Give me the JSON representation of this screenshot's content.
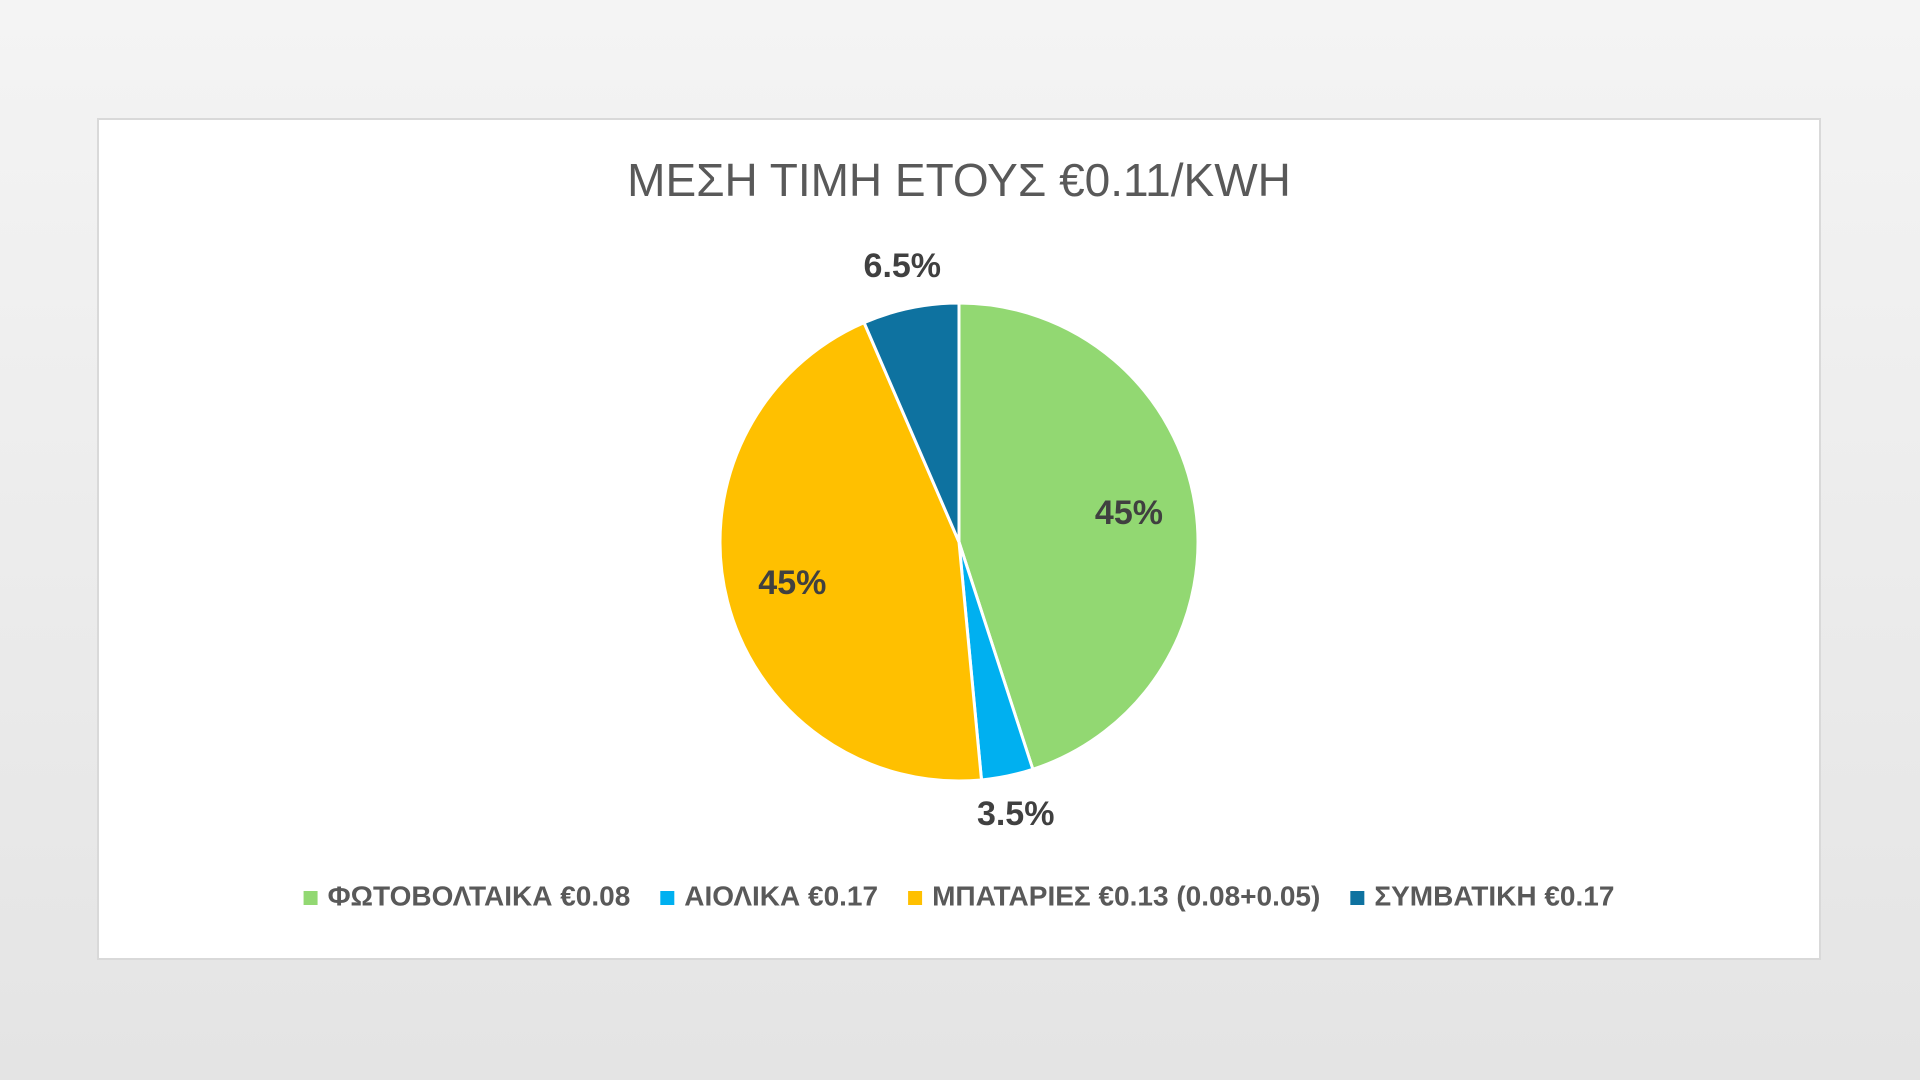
{
  "chart_data": {
    "type": "pie",
    "title": "ΜΕΣΗ ΤΙΜΗ ΕΤΟΥΣ €0.11/KWH",
    "categories": [
      "ΦΩΤΟΒΟΛΤΑΙΚΑ €0.08",
      "ΑΙΟΛΙΚΑ €0.17",
      "ΜΠΑΤΑΡΙΕΣ €0.13 (0.08+0.05)",
      "ΣΥΜΒΑΤΙΚΗ €0.17"
    ],
    "values": [
      45,
      3.5,
      45,
      6.5
    ],
    "value_labels": [
      "45%",
      "3.5%",
      "45%",
      "6.5%"
    ],
    "colors": [
      "#92d872",
      "#00b0f0",
      "#ffc000",
      "#0e72a0"
    ],
    "legend": "bottom"
  }
}
